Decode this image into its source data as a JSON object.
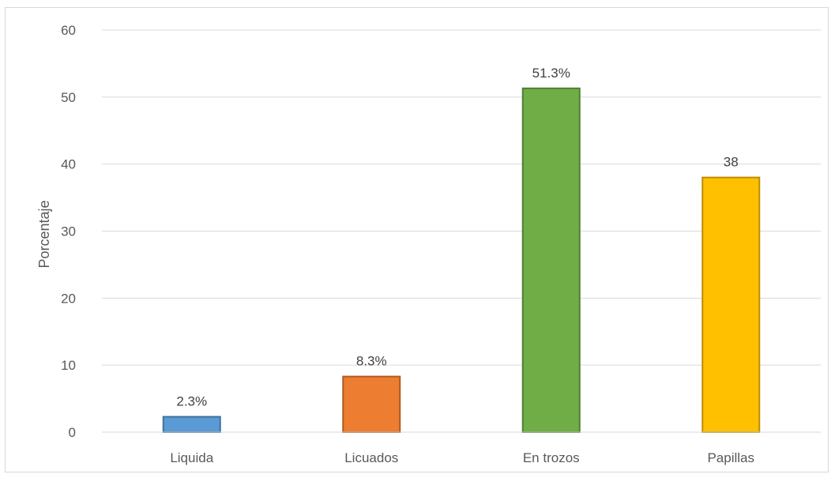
{
  "chart_data": {
    "type": "bar",
    "categories": [
      "Liquida",
      "Licuados",
      "En trozos",
      "Papillas"
    ],
    "values": [
      2.3,
      8.3,
      51.3,
      38
    ],
    "data_labels": [
      "2.3%",
      "8.3%",
      "51.3%",
      "38"
    ],
    "colors": [
      "#5b9bd5",
      "#ed7d31",
      "#70ad47",
      "#ffc000"
    ],
    "stroke_colors": [
      "#41719c",
      "#ae5a21",
      "#507e32",
      "#bc8c00"
    ],
    "title": "",
    "xlabel": "",
    "ylabel": "Porcentaje",
    "ylim": [
      0,
      60
    ],
    "yticks": [
      0,
      10,
      20,
      30,
      40,
      50,
      60
    ],
    "grid": true,
    "legend": "none"
  }
}
